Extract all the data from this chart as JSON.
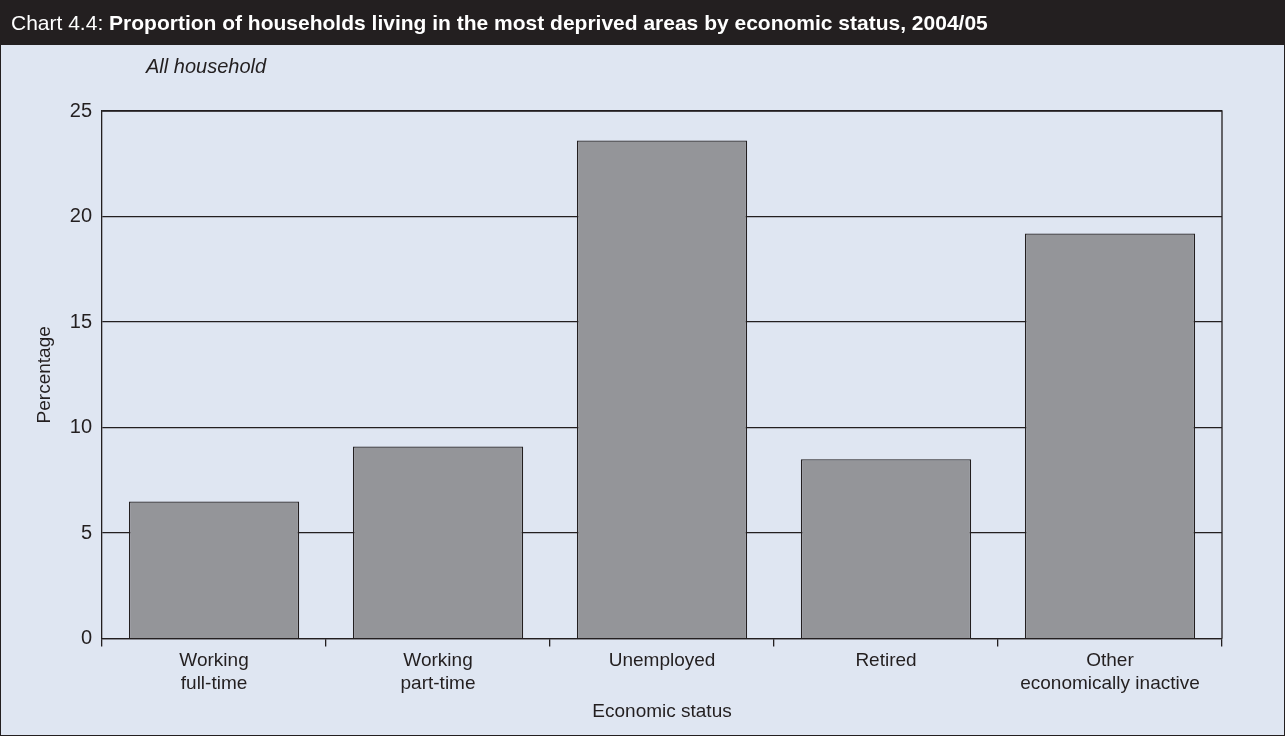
{
  "chart_data": {
    "type": "bar",
    "title": "Chart 4.4: Proportion of households living in the most deprived areas by economic status, 2004/05",
    "subtitle": "All household",
    "xlabel": "Economic status",
    "ylabel": "Percentage",
    "categories": [
      "Working full-time",
      "Working part-time",
      "Unemployed",
      "Retired",
      "Other economically inactive"
    ],
    "values": [
      6.5,
      9.1,
      23.6,
      8.5,
      19.2
    ],
    "color": "#949599",
    "ylim": [
      0,
      25
    ],
    "yticks": [
      0,
      5,
      10,
      15,
      20,
      25
    ],
    "grid": "y"
  }
}
